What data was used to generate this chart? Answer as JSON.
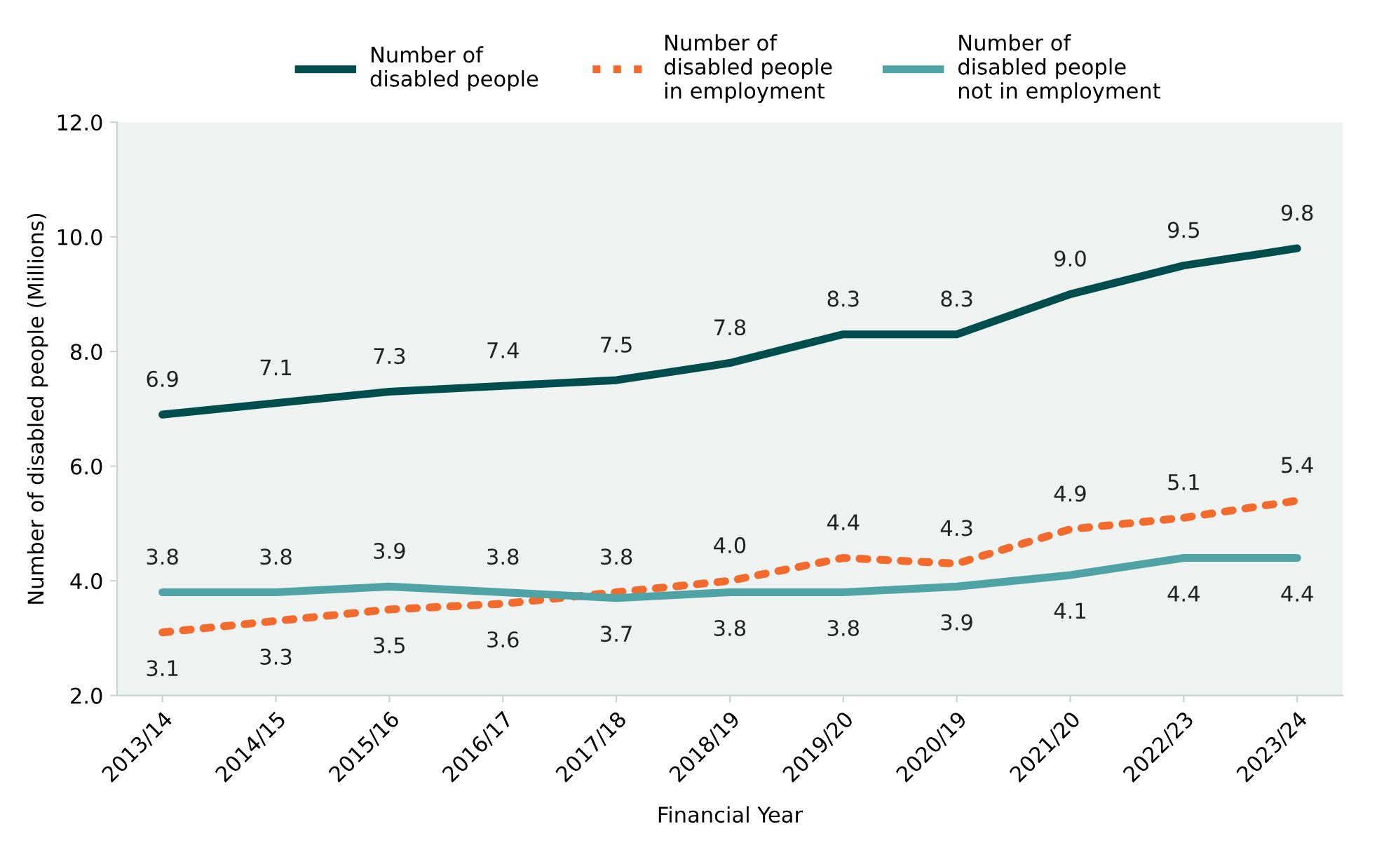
{
  "chart_data": {
    "type": "line",
    "xlabel": "Financial Year",
    "ylabel": "Number of disabled people (Millions)",
    "categories": [
      "2013/14",
      "2014/15",
      "2015/16",
      "2016/17",
      "2017/18",
      "2018/19",
      "2019/20",
      "2020/19",
      "2021/20",
      "2022/23",
      "2023/24"
    ],
    "series": [
      {
        "name": "Number of\ndisabled people",
        "color": "#004d4d",
        "values": [
          6.9,
          7.1,
          7.3,
          7.4,
          7.5,
          7.8,
          8.3,
          8.3,
          9.0,
          9.5,
          9.8
        ],
        "value_labels": [
          "6.9",
          "7.1",
          "7.3",
          "7.4",
          "7.5",
          "7.8",
          "8.3",
          "8.3",
          "9.0",
          "9.5",
          "9.8"
        ]
      },
      {
        "name": "Number of\ndisabled people\nin employment",
        "color": "#f26b2d",
        "line_style": "dotted",
        "values": [
          3.1,
          3.3,
          3.5,
          3.6,
          3.8,
          4.0,
          4.4,
          4.3,
          4.9,
          5.1,
          5.4
        ],
        "value_labels": [
          "3.1",
          "3.3",
          "3.5",
          "3.6",
          "3.8",
          "4.0",
          "4.4",
          "4.3",
          "4.9",
          "5.1",
          "5.4"
        ]
      },
      {
        "name": "Number of\ndisabled people\nnot in employment",
        "color": "#4fa3a5",
        "values": [
          3.8,
          3.8,
          3.9,
          3.8,
          3.7,
          3.8,
          3.8,
          3.9,
          4.1,
          4.4,
          4.4
        ],
        "value_labels": [
          "3.8",
          "3.8",
          "3.9",
          "3.8",
          "3.7",
          "3.8",
          "3.8",
          "3.9",
          "4.1",
          "4.4",
          "4.4"
        ]
      }
    ],
    "ylim": [
      2.0,
      12.0
    ],
    "yticks": [
      {
        "value": 2,
        "label": "2.0"
      },
      {
        "value": 4,
        "label": "4.0"
      },
      {
        "value": 6,
        "label": "6.0"
      },
      {
        "value": 8,
        "label": "8.0"
      },
      {
        "value": 10,
        "label": "10.0"
      },
      {
        "value": 12,
        "label": "12.0"
      }
    ],
    "legend": "top",
    "grid": false
  }
}
